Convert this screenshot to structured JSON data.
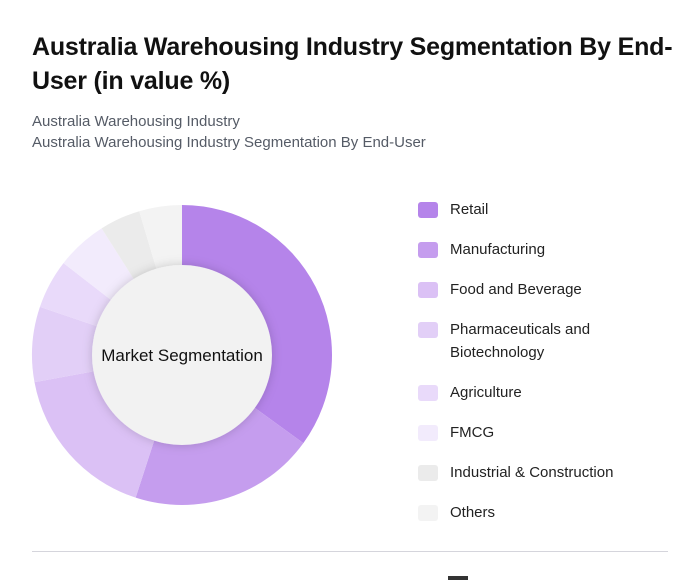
{
  "header": {
    "title": "Australia Warehousing Industry Segmentation By End-User (in value %)",
    "subtitle_1": "Australia Warehousing Industry",
    "subtitle_2": "Australia Warehousing Industry Segmentation By End-User"
  },
  "chart_data": {
    "type": "pie",
    "variant": "donut",
    "center_label": "Market Segmentation",
    "legend_placement": "right",
    "unit": "%",
    "slices": [
      {
        "label": "Retail",
        "value": 35.0,
        "color": "#b584ea"
      },
      {
        "label": "Manufacturing",
        "value": 20.0,
        "color": "#c59dee"
      },
      {
        "label": "Food and Beverage",
        "value": 17.1,
        "color": "#dbc1f5"
      },
      {
        "label": "Pharmaceuticals and Biotechnology",
        "value": 8.1,
        "color": "#e2cff7"
      },
      {
        "label": "Agriculture",
        "value": 5.3,
        "color": "#e9dafa"
      },
      {
        "label": "FMCG",
        "value": 5.5,
        "color": "#f2ebfc"
      },
      {
        "label": "Industrial & Construction",
        "value": 4.4,
        "color": "#ebebeb"
      },
      {
        "label": "Others",
        "value": 4.6,
        "color": "#f3f3f3"
      }
    ]
  }
}
